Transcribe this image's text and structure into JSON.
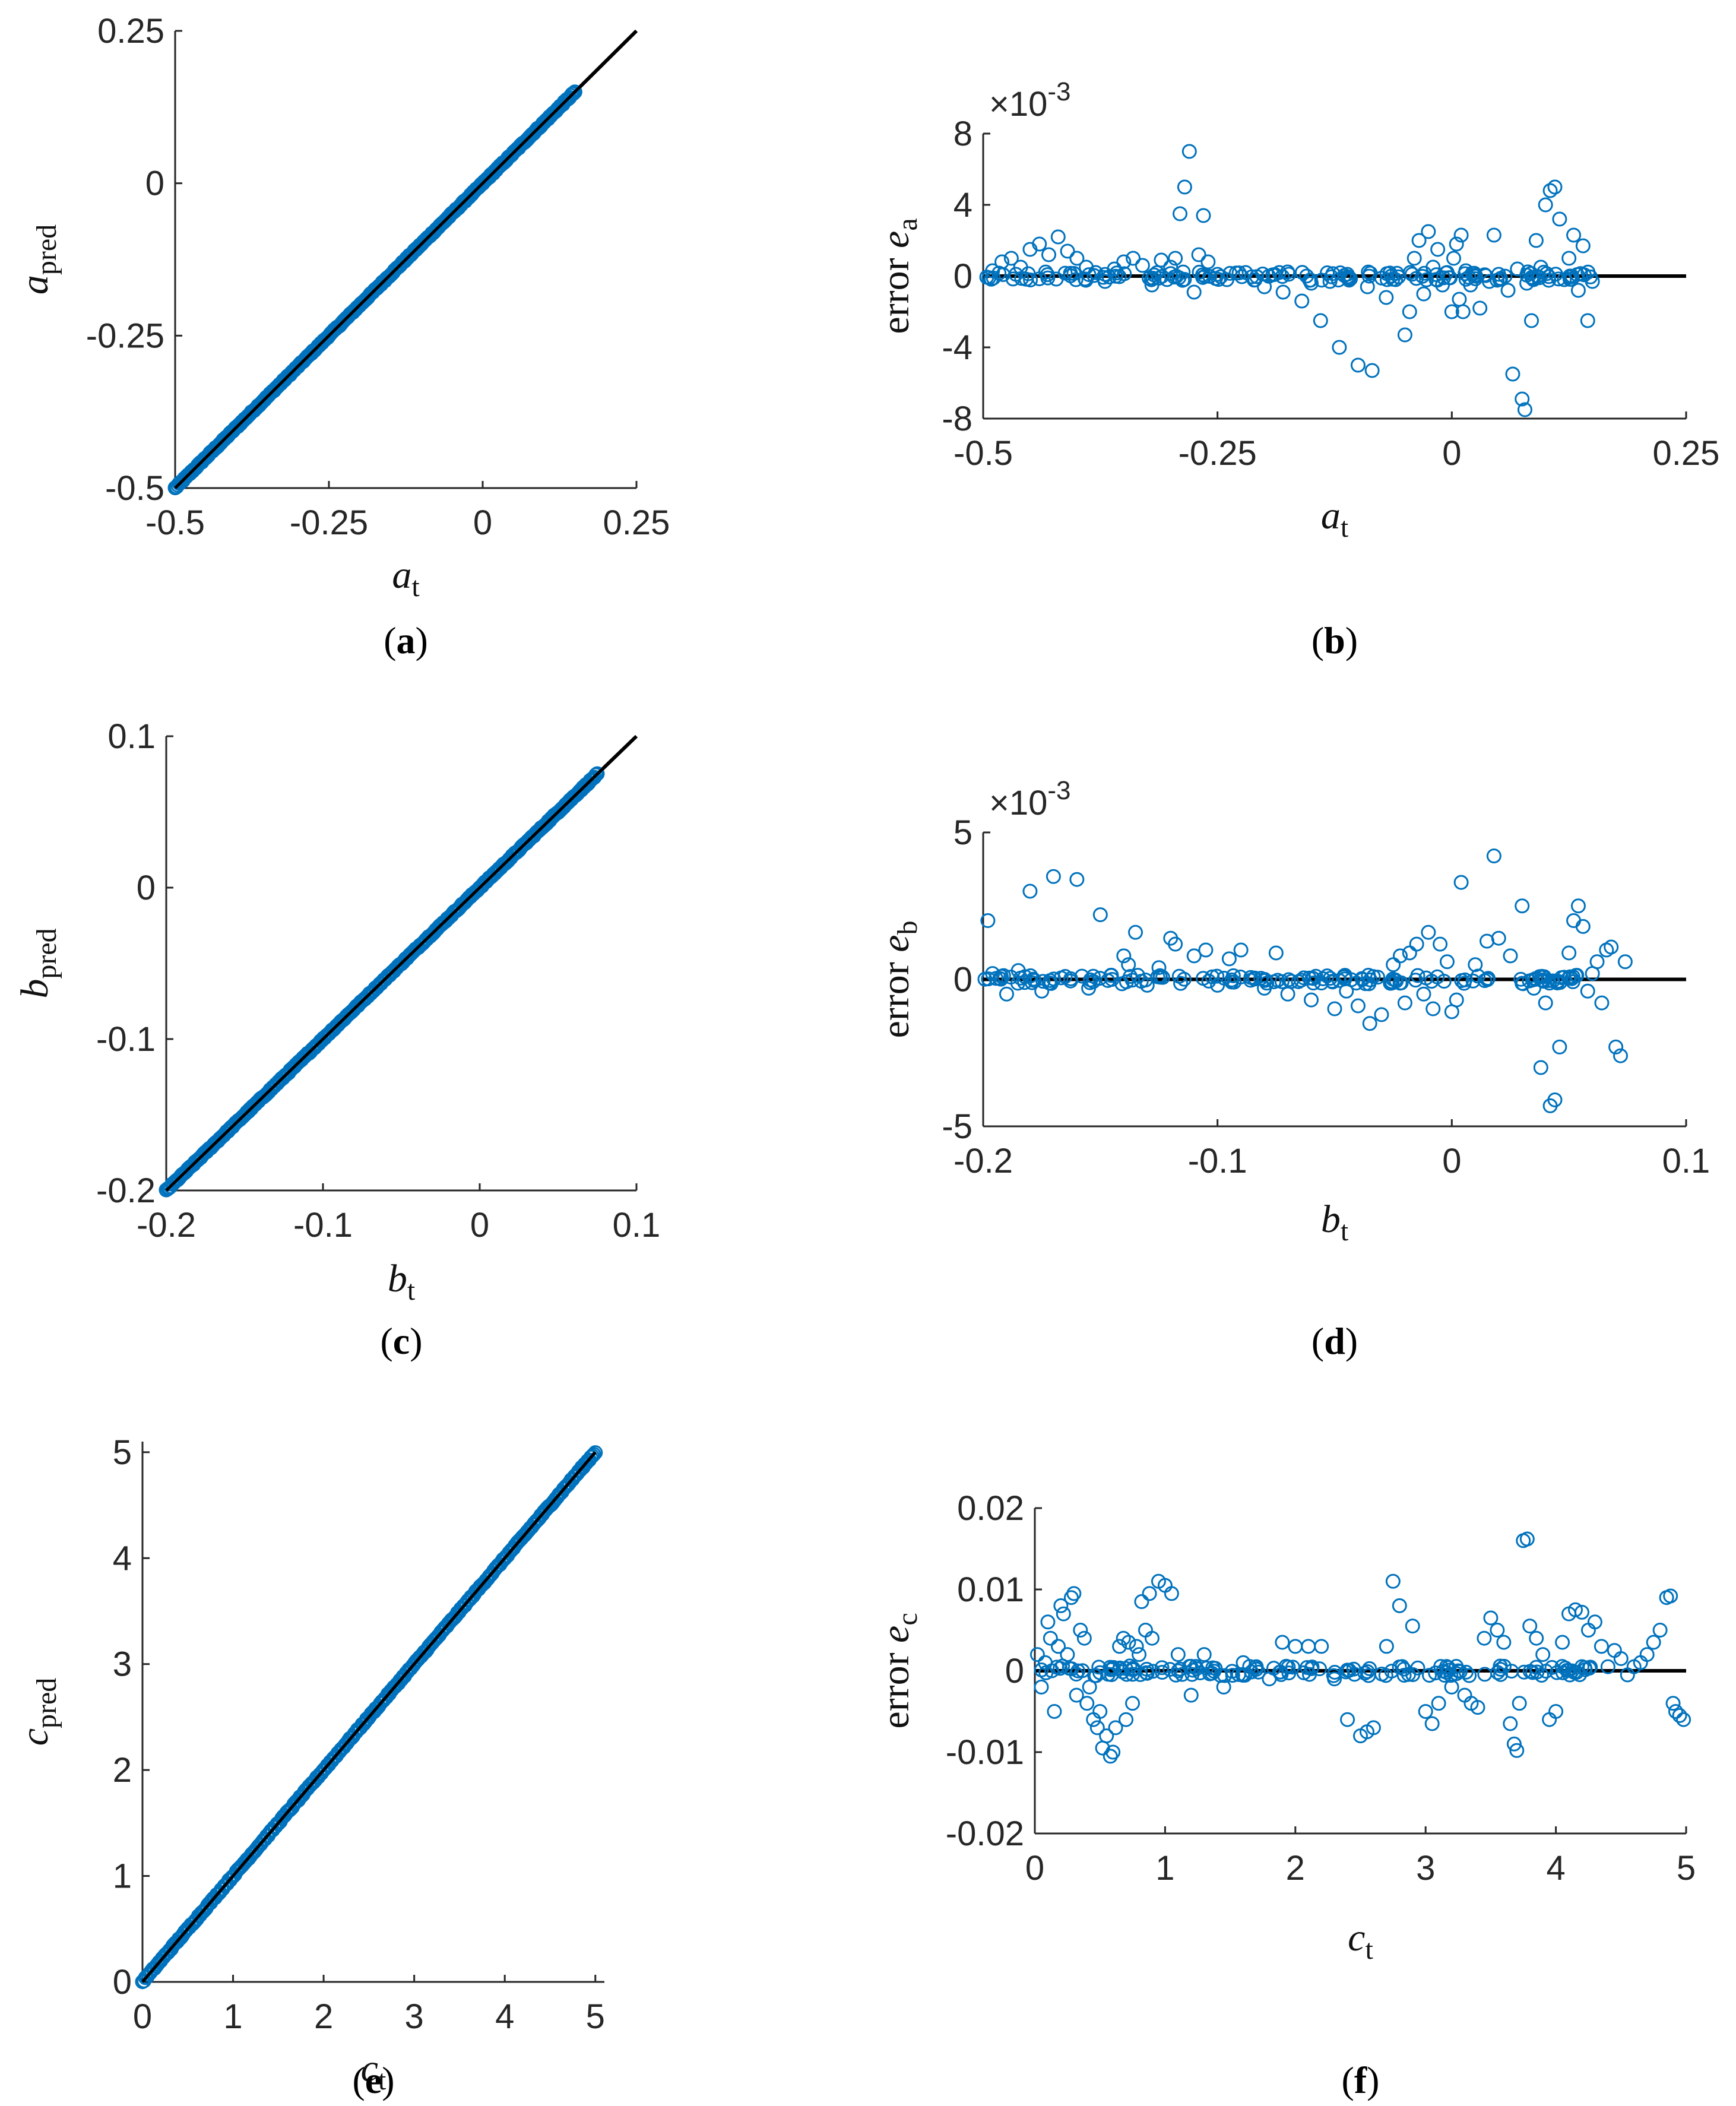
{
  "chart_data": [
    {
      "panel": "(a)",
      "type": "scatter",
      "x_var": "a",
      "x_sub": "t",
      "y_var": "a",
      "y_sub": "pred",
      "xlim": [
        -0.5,
        0.25
      ],
      "ylim": [
        -0.5,
        0.25
      ],
      "xticks": [
        -0.5,
        -0.25,
        0,
        0.25
      ],
      "xtick_labels": [
        "-0.5",
        "-0.25",
        "0",
        "0.25"
      ],
      "yticks": [
        -0.5,
        -0.25,
        0,
        0.25
      ],
      "ytick_labels": [
        "-0.5",
        "-0.25",
        "0",
        "0.25"
      ],
      "reference_line": {
        "x": [
          -0.5,
          0.25
        ],
        "y": [
          -0.5,
          0.25
        ]
      },
      "data_range": [
        -0.5,
        0.15
      ],
      "n_points": 300
    },
    {
      "panel": "(b)",
      "type": "scatter",
      "x_var": "a",
      "x_sub": "t",
      "y_word": "error",
      "y_var": "e",
      "y_sub": "a",
      "multiplier_base": "×10",
      "multiplier_exp": "-3",
      "xlim": [
        -0.5,
        0.25
      ],
      "ylim": [
        -8,
        8
      ],
      "xticks": [
        -0.5,
        -0.25,
        0,
        0.25
      ],
      "xtick_labels": [
        "-0.5",
        "-0.25",
        "0",
        "0.25"
      ],
      "yticks": [
        -8,
        -4,
        0,
        4,
        8
      ],
      "ytick_labels": [
        "-8",
        "-4",
        "0",
        "4",
        "8"
      ],
      "reference_line": {
        "x": [
          -0.5,
          0.25
        ],
        "y": [
          0,
          0
        ]
      },
      "points": [
        [
          -0.49,
          0.3
        ],
        [
          -0.48,
          0.8
        ],
        [
          -0.47,
          1.0
        ],
        [
          -0.46,
          0.5
        ],
        [
          -0.45,
          1.5
        ],
        [
          -0.44,
          1.8
        ],
        [
          -0.43,
          1.2
        ],
        [
          -0.42,
          2.2
        ],
        [
          -0.41,
          1.4
        ],
        [
          -0.4,
          1.0
        ],
        [
          -0.39,
          0.5
        ],
        [
          -0.38,
          0.2
        ],
        [
          -0.37,
          -0.3
        ],
        [
          -0.36,
          0.4
        ],
        [
          -0.35,
          0.8
        ],
        [
          -0.34,
          1.0
        ],
        [
          -0.33,
          0.6
        ],
        [
          -0.32,
          -0.5
        ],
        [
          -0.31,
          0.9
        ],
        [
          -0.3,
          0.5
        ],
        [
          -0.295,
          1.0
        ],
        [
          -0.29,
          3.5
        ],
        [
          -0.285,
          5.0
        ],
        [
          -0.28,
          7.0
        ],
        [
          -0.275,
          -0.9
        ],
        [
          -0.27,
          1.2
        ],
        [
          -0.265,
          3.4
        ],
        [
          -0.26,
          0.8
        ],
        [
          -0.25,
          0.1
        ],
        [
          -0.24,
          -0.2
        ],
        [
          -0.22,
          0.2
        ],
        [
          -0.2,
          -0.6
        ],
        [
          -0.18,
          -0.9
        ],
        [
          -0.16,
          -1.4
        ],
        [
          -0.15,
          -0.4
        ],
        [
          -0.14,
          -2.5
        ],
        [
          -0.13,
          -0.3
        ],
        [
          -0.12,
          -4.0
        ],
        [
          -0.11,
          -0.1
        ],
        [
          -0.1,
          -5.0
        ],
        [
          -0.09,
          -0.6
        ],
        [
          -0.085,
          -5.3
        ],
        [
          -0.07,
          -1.2
        ],
        [
          -0.06,
          -0.2
        ],
        [
          -0.05,
          -3.3
        ],
        [
          -0.045,
          -2.0
        ],
        [
          -0.04,
          1.0
        ],
        [
          -0.035,
          2.0
        ],
        [
          -0.03,
          -1.0
        ],
        [
          -0.025,
          2.5
        ],
        [
          -0.02,
          0.5
        ],
        [
          -0.015,
          1.5
        ],
        [
          -0.01,
          -0.5
        ],
        [
          -0.005,
          0.2
        ],
        [
          0.0,
          -2.0
        ],
        [
          0.002,
          1.0
        ],
        [
          0.005,
          1.8
        ],
        [
          0.008,
          -1.3
        ],
        [
          0.01,
          2.3
        ],
        [
          0.012,
          -2.0
        ],
        [
          0.015,
          0.3
        ],
        [
          0.02,
          -0.5
        ],
        [
          0.03,
          -1.8
        ],
        [
          0.04,
          -0.3
        ],
        [
          0.045,
          2.3
        ],
        [
          0.05,
          0.1
        ],
        [
          0.06,
          -0.8
        ],
        [
          0.065,
          -5.5
        ],
        [
          0.07,
          0.4
        ],
        [
          0.075,
          -6.9
        ],
        [
          0.078,
          -7.5
        ],
        [
          0.08,
          -0.4
        ],
        [
          0.085,
          -2.5
        ],
        [
          0.09,
          2.0
        ],
        [
          0.095,
          0.5
        ],
        [
          0.1,
          4.0
        ],
        [
          0.105,
          4.8
        ],
        [
          0.11,
          5.0
        ],
        [
          0.115,
          3.2
        ],
        [
          0.12,
          -0.2
        ],
        [
          0.125,
          1.0
        ],
        [
          0.13,
          2.3
        ],
        [
          0.135,
          -0.8
        ],
        [
          0.14,
          1.7
        ],
        [
          0.145,
          -2.5
        ],
        [
          0.15,
          -0.3
        ]
      ],
      "n_near_zero_points": 150
    },
    {
      "panel": "(c)",
      "type": "scatter",
      "x_var": "b",
      "x_sub": "t",
      "y_var": "b",
      "y_sub": "pred",
      "xlim": [
        -0.2,
        0.1
      ],
      "ylim": [
        -0.2,
        0.1
      ],
      "xticks": [
        -0.2,
        -0.1,
        0,
        0.1
      ],
      "xtick_labels": [
        "-0.2",
        "-0.1",
        "0",
        "0.1"
      ],
      "yticks": [
        -0.2,
        -0.1,
        0,
        0.1
      ],
      "ytick_labels": [
        "-0.2",
        "-0.1",
        "0",
        "0.1"
      ],
      "reference_line": {
        "x": [
          -0.2,
          0.1
        ],
        "y": [
          -0.2,
          0.1
        ]
      },
      "data_range": [
        -0.2,
        0.075
      ],
      "n_points": 300
    },
    {
      "panel": "(d)",
      "type": "scatter",
      "x_var": "b",
      "x_sub": "t",
      "y_word": "error",
      "y_var": "e",
      "y_sub": "b",
      "multiplier_base": "×10",
      "multiplier_exp": "-3",
      "xlim": [
        -0.2,
        0.1
      ],
      "ylim": [
        -5,
        5
      ],
      "xticks": [
        -0.2,
        -0.1,
        0,
        0.1
      ],
      "xtick_labels": [
        "-0.2",
        "-0.1",
        "0",
        "0.1"
      ],
      "yticks": [
        -5,
        0,
        5
      ],
      "ytick_labels": [
        "-5",
        "0",
        "5"
      ],
      "reference_line": {
        "x": [
          -0.2,
          0.1
        ],
        "y": [
          0,
          0
        ]
      },
      "points": [
        [
          -0.198,
          2.0
        ],
        [
          -0.196,
          0.2
        ],
        [
          -0.19,
          -0.5
        ],
        [
          -0.185,
          0.3
        ],
        [
          -0.18,
          3.0
        ],
        [
          -0.175,
          -0.4
        ],
        [
          -0.17,
          3.5
        ],
        [
          -0.165,
          0.1
        ],
        [
          -0.16,
          3.4
        ],
        [
          -0.155,
          -0.3
        ],
        [
          -0.15,
          2.2
        ],
        [
          -0.145,
          0.0
        ],
        [
          -0.14,
          0.8
        ],
        [
          -0.138,
          0.5
        ],
        [
          -0.135,
          1.6
        ],
        [
          -0.13,
          -0.2
        ],
        [
          -0.125,
          0.4
        ],
        [
          -0.12,
          1.4
        ],
        [
          -0.118,
          1.2
        ],
        [
          -0.11,
          0.8
        ],
        [
          -0.105,
          1.0
        ],
        [
          -0.1,
          -0.2
        ],
        [
          -0.095,
          0.7
        ],
        [
          -0.09,
          1.0
        ],
        [
          -0.08,
          -0.3
        ],
        [
          -0.075,
          0.9
        ],
        [
          -0.07,
          -0.5
        ],
        [
          -0.06,
          -0.7
        ],
        [
          -0.05,
          -1.0
        ],
        [
          -0.045,
          -0.4
        ],
        [
          -0.04,
          -0.9
        ],
        [
          -0.035,
          -1.5
        ],
        [
          -0.03,
          -1.2
        ],
        [
          -0.025,
          0.5
        ],
        [
          -0.022,
          0.8
        ],
        [
          -0.02,
          -0.8
        ],
        [
          -0.018,
          0.9
        ],
        [
          -0.015,
          1.2
        ],
        [
          -0.012,
          -0.5
        ],
        [
          -0.01,
          1.6
        ],
        [
          -0.008,
          -1.0
        ],
        [
          -0.005,
          1.2
        ],
        [
          -0.002,
          0.6
        ],
        [
          0.0,
          -1.1
        ],
        [
          0.002,
          -0.7
        ],
        [
          0.004,
          3.3
        ],
        [
          0.01,
          0.5
        ],
        [
          0.015,
          1.3
        ],
        [
          0.018,
          4.2
        ],
        [
          0.02,
          1.4
        ],
        [
          0.025,
          0.8
        ],
        [
          0.03,
          2.5
        ],
        [
          0.035,
          -0.3
        ],
        [
          0.038,
          -3.0
        ],
        [
          0.04,
          -0.8
        ],
        [
          0.042,
          -4.3
        ],
        [
          0.044,
          -4.1
        ],
        [
          0.046,
          -2.3
        ],
        [
          0.05,
          0.9
        ],
        [
          0.052,
          2.0
        ],
        [
          0.054,
          2.5
        ],
        [
          0.056,
          1.8
        ],
        [
          0.058,
          -0.4
        ],
        [
          0.06,
          0.2
        ],
        [
          0.062,
          0.6
        ],
        [
          0.064,
          -0.8
        ],
        [
          0.066,
          1.0
        ],
        [
          0.068,
          1.1
        ],
        [
          0.07,
          -2.3
        ],
        [
          0.072,
          -2.6
        ],
        [
          0.074,
          0.6
        ]
      ],
      "n_near_zero_points": 150
    },
    {
      "panel": "(e)",
      "type": "scatter",
      "x_var": "c",
      "x_sub": "t",
      "y_var": "c",
      "y_sub": "pred",
      "xlim": [
        0,
        5.1
      ],
      "ylim": [
        0,
        5.1
      ],
      "xticks": [
        0,
        1,
        2,
        3,
        4,
        5
      ],
      "xtick_labels": [
        "0",
        "1",
        "2",
        "3",
        "4",
        "5"
      ],
      "yticks": [
        0,
        1,
        2,
        3,
        4,
        5
      ],
      "ytick_labels": [
        "0",
        "1",
        "2",
        "3",
        "4",
        "5"
      ],
      "reference_line": {
        "x": [
          0,
          5.0
        ],
        "y": [
          0,
          5.0
        ]
      },
      "data_range": [
        0,
        5.0
      ],
      "n_points": 300
    },
    {
      "panel": "(f)",
      "type": "scatter",
      "x_var": "c",
      "x_sub": "t",
      "y_word": "error",
      "y_var": "e",
      "y_sub": "c",
      "xlim": [
        0,
        5
      ],
      "ylim": [
        -0.02,
        0.02
      ],
      "xticks": [
        0,
        1,
        2,
        3,
        4,
        5
      ],
      "xtick_labels": [
        "0",
        "1",
        "2",
        "3",
        "4",
        "5"
      ],
      "yticks": [
        -0.02,
        -0.01,
        0,
        0.01,
        0.02
      ],
      "ytick_labels": [
        "-0.02",
        "-0.01",
        "0",
        "0.01",
        "0.02"
      ],
      "reference_line": {
        "x": [
          0,
          5
        ],
        "y": [
          0,
          0
        ]
      },
      "points": [
        [
          0.02,
          0.002
        ],
        [
          0.05,
          -0.002
        ],
        [
          0.08,
          0.001
        ],
        [
          0.1,
          0.006
        ],
        [
          0.12,
          0.004
        ],
        [
          0.15,
          -0.005
        ],
        [
          0.18,
          0.003
        ],
        [
          0.2,
          0.008
        ],
        [
          0.22,
          0.007
        ],
        [
          0.25,
          0.002
        ],
        [
          0.28,
          0.009
        ],
        [
          0.3,
          0.0095
        ],
        [
          0.32,
          -0.003
        ],
        [
          0.35,
          0.005
        ],
        [
          0.38,
          0.004
        ],
        [
          0.4,
          -0.004
        ],
        [
          0.42,
          -0.002
        ],
        [
          0.45,
          -0.006
        ],
        [
          0.48,
          -0.007
        ],
        [
          0.5,
          -0.005
        ],
        [
          0.52,
          -0.0095
        ],
        [
          0.55,
          -0.008
        ],
        [
          0.58,
          -0.0105
        ],
        [
          0.6,
          -0.01
        ],
        [
          0.62,
          -0.007
        ],
        [
          0.65,
          0.003
        ],
        [
          0.68,
          0.004
        ],
        [
          0.7,
          -0.006
        ],
        [
          0.72,
          0.0035
        ],
        [
          0.75,
          -0.004
        ],
        [
          0.78,
          0.003
        ],
        [
          0.8,
          0.002
        ],
        [
          0.82,
          0.0085
        ],
        [
          0.85,
          0.005
        ],
        [
          0.88,
          0.0095
        ],
        [
          0.9,
          0.004
        ],
        [
          0.95,
          0.011
        ],
        [
          1.0,
          0.0105
        ],
        [
          1.05,
          0.0095
        ],
        [
          1.1,
          0.002
        ],
        [
          1.2,
          -0.003
        ],
        [
          1.3,
          0.002
        ],
        [
          1.45,
          -0.002
        ],
        [
          1.6,
          0.001
        ],
        [
          1.7,
          0.0005
        ],
        [
          1.8,
          -0.001
        ],
        [
          1.9,
          0.0035
        ],
        [
          2.0,
          0.003
        ],
        [
          2.1,
          0.003
        ],
        [
          2.2,
          0.003
        ],
        [
          2.3,
          -0.001
        ],
        [
          2.4,
          -0.006
        ],
        [
          2.5,
          -0.008
        ],
        [
          2.55,
          -0.0075
        ],
        [
          2.6,
          -0.007
        ],
        [
          2.7,
          0.003
        ],
        [
          2.75,
          0.011
        ],
        [
          2.8,
          0.008
        ],
        [
          2.9,
          0.0055
        ],
        [
          3.0,
          -0.005
        ],
        [
          3.05,
          -0.0065
        ],
        [
          3.1,
          -0.004
        ],
        [
          3.2,
          -0.002
        ],
        [
          3.25,
          0.0
        ],
        [
          3.3,
          -0.003
        ],
        [
          3.35,
          -0.004
        ],
        [
          3.4,
          -0.0045
        ],
        [
          3.45,
          0.004
        ],
        [
          3.5,
          0.0065
        ],
        [
          3.55,
          0.005
        ],
        [
          3.6,
          0.0035
        ],
        [
          3.65,
          -0.0065
        ],
        [
          3.68,
          -0.009
        ],
        [
          3.7,
          -0.0098
        ],
        [
          3.72,
          -0.004
        ],
        [
          3.75,
          0.016
        ],
        [
          3.78,
          0.0162
        ],
        [
          3.8,
          0.0055
        ],
        [
          3.85,
          0.004
        ],
        [
          3.9,
          0.002
        ],
        [
          3.95,
          -0.006
        ],
        [
          4.0,
          -0.005
        ],
        [
          4.05,
          0.0035
        ],
        [
          4.1,
          0.007
        ],
        [
          4.15,
          0.0075
        ],
        [
          4.2,
          0.0072
        ],
        [
          4.25,
          0.005
        ],
        [
          4.3,
          0.006
        ],
        [
          4.35,
          0.003
        ],
        [
          4.4,
          0.0005
        ],
        [
          4.45,
          0.0025
        ],
        [
          4.5,
          0.0015
        ],
        [
          4.55,
          -0.0005
        ],
        [
          4.6,
          0.0005
        ],
        [
          4.65,
          0.001
        ],
        [
          4.7,
          0.002
        ],
        [
          4.75,
          0.0035
        ],
        [
          4.8,
          0.005
        ],
        [
          4.85,
          0.009
        ],
        [
          4.88,
          0.0092
        ],
        [
          4.9,
          -0.004
        ],
        [
          4.92,
          -0.005
        ],
        [
          4.95,
          -0.0055
        ],
        [
          4.98,
          -0.006
        ]
      ],
      "n_near_zero_points": 150
    }
  ]
}
